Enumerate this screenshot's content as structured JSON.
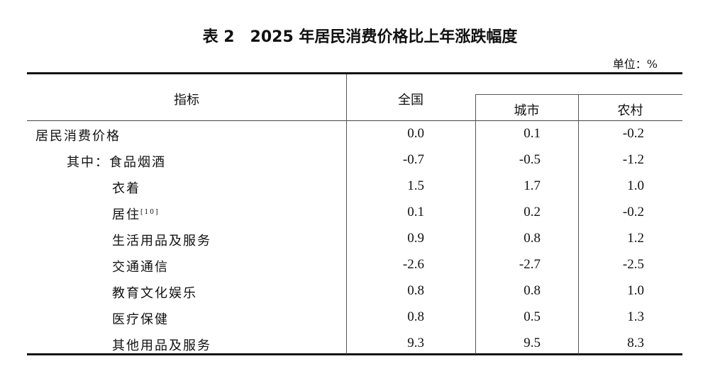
{
  "title": "表 2　2025 年居民消费价格比上年涨跌幅度",
  "unit": "单位：%",
  "headers": {
    "indicator": "指标",
    "national": "全国",
    "urban": "城市",
    "rural": "农村"
  },
  "rows": [
    {
      "label": "居民消费价格",
      "note": "",
      "level": 0,
      "national": "0.0",
      "urban": "0.1",
      "rural": "-0.2"
    },
    {
      "label": "其中：食品烟酒",
      "note": "",
      "level": 1,
      "national": "-0.7",
      "urban": "-0.5",
      "rural": "-1.2"
    },
    {
      "label": "衣着",
      "note": "",
      "level": 2,
      "national": "1.5",
      "urban": "1.7",
      "rural": "1.0"
    },
    {
      "label": "居住",
      "note": "[10]",
      "level": 2,
      "national": "0.1",
      "urban": "0.2",
      "rural": "-0.2"
    },
    {
      "label": "生活用品及服务",
      "note": "",
      "level": 2,
      "national": "0.9",
      "urban": "0.8",
      "rural": "1.2"
    },
    {
      "label": "交通通信",
      "note": "",
      "level": 2,
      "national": "-2.6",
      "urban": "-2.7",
      "rural": "-2.5"
    },
    {
      "label": "教育文化娱乐",
      "note": "",
      "level": 2,
      "national": "0.8",
      "urban": "0.8",
      "rural": "1.0"
    },
    {
      "label": "医疗保健",
      "note": "",
      "level": 2,
      "national": "0.8",
      "urban": "0.5",
      "rural": "1.3"
    },
    {
      "label": "其他用品及服务",
      "note": "",
      "level": 2,
      "national": "9.3",
      "urban": "9.5",
      "rural": "8.3"
    }
  ]
}
